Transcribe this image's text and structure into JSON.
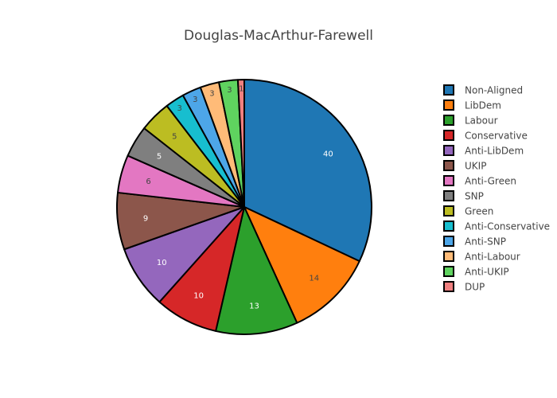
{
  "chart_data": {
    "type": "pie",
    "title": "Douglas-MacArthur-Farewell",
    "legend_position": "right",
    "slices": [
      {
        "label": "Non-Aligned",
        "value": 40,
        "color": "#1f77b4"
      },
      {
        "label": "LibDem",
        "value": 14,
        "color": "#ff7f0e"
      },
      {
        "label": "Labour",
        "value": 13,
        "color": "#2ca02c"
      },
      {
        "label": "Conservative",
        "value": 10,
        "color": "#d62728"
      },
      {
        "label": "Anti-LibDem",
        "value": 10,
        "color": "#9467bd"
      },
      {
        "label": "UKIP",
        "value": 9,
        "color": "#8c564b"
      },
      {
        "label": "Anti-Green",
        "value": 6,
        "color": "#e377c2"
      },
      {
        "label": "SNP",
        "value": 5,
        "color": "#7f7f7f"
      },
      {
        "label": "Green",
        "value": 5,
        "color": "#bcbd22"
      },
      {
        "label": "Anti-Conservative",
        "value": 3,
        "color": "#17becf"
      },
      {
        "label": "Anti-SNP",
        "value": 3,
        "color": "#4da6e8"
      },
      {
        "label": "Anti-Labour",
        "value": 3,
        "color": "#ffbb78"
      },
      {
        "label": "Anti-UKIP",
        "value": 3,
        "color": "#5fd35f"
      },
      {
        "label": "DUP",
        "value": 1,
        "color": "#f08080"
      }
    ]
  }
}
